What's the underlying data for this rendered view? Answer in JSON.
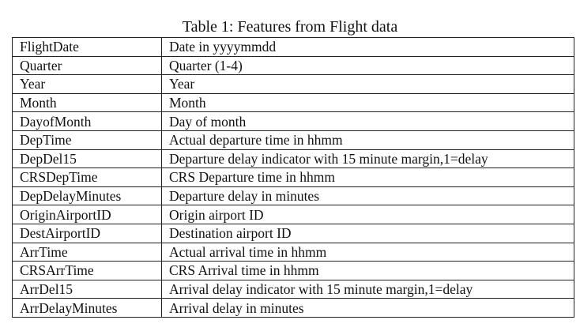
{
  "caption": "Table 1: Features from Flight data",
  "rows": [
    {
      "feature": "FlightDate",
      "description": "Date in yyyymmdd"
    },
    {
      "feature": "Quarter",
      "description": "Quarter (1-4)"
    },
    {
      "feature": "Year",
      "description": "Year"
    },
    {
      "feature": "Month",
      "description": "Month"
    },
    {
      "feature": "DayofMonth",
      "description": "Day of month"
    },
    {
      "feature": "DepTime",
      "description": "Actual departure time in hhmm"
    },
    {
      "feature": "DepDel15",
      "description": "Departure delay indicator with 15 minute margin,1=delay"
    },
    {
      "feature": "CRSDepTime",
      "description": "CRS Departure time in hhmm"
    },
    {
      "feature": "DepDelayMinutes",
      "description": "Departure delay in minutes"
    },
    {
      "feature": "OriginAirportID",
      "description": "Origin airport ID"
    },
    {
      "feature": "DestAirportID",
      "description": "Destination airport ID"
    },
    {
      "feature": "ArrTime",
      "description": "Actual arrival time in hhmm"
    },
    {
      "feature": "CRSArrTime",
      "description": "CRS Arrival time in hhmm"
    },
    {
      "feature": "ArrDel15",
      "description": "Arrival delay indicator with 15 minute margin,1=delay"
    },
    {
      "feature": "ArrDelayMinutes",
      "description": "Arrival delay in minutes"
    }
  ]
}
